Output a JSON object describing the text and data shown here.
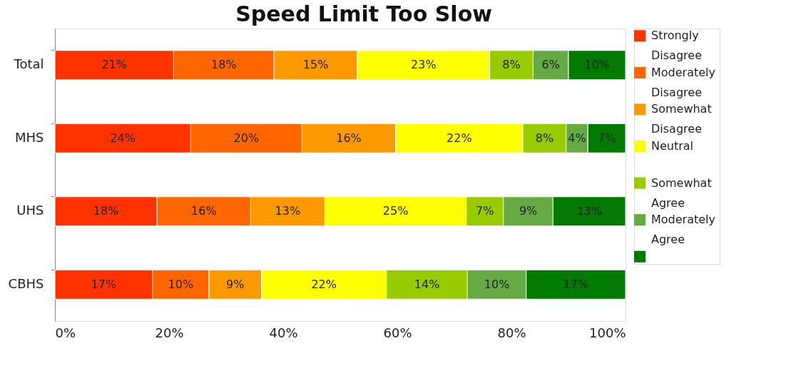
{
  "chart_data": {
    "type": "bar",
    "orientation": "horizontal",
    "stacked": true,
    "title": "Speed Limit Too Slow",
    "categories": [
      "Total",
      "MHS",
      "UHS",
      "CBHS"
    ],
    "series": [
      {
        "name": "Strongly Disagree",
        "color": "#ff3300",
        "values": [
          20.8,
          23.8,
          17.9,
          17.1
        ],
        "value_labels": [
          "21%",
          "24%",
          "18%",
          "17%"
        ]
      },
      {
        "name": "Moderately Disagree",
        "color": "#ff6600",
        "values": [
          17.6,
          19.5,
          16.4,
          9.9
        ],
        "value_labels": [
          "18%",
          "20%",
          "16%",
          "10%"
        ]
      },
      {
        "name": "Somewhat Disagree",
        "color": "#ff9900",
        "values": [
          14.6,
          16.4,
          13,
          9.2
        ],
        "value_labels": [
          "15%",
          "16%",
          "13%",
          "9%"
        ]
      },
      {
        "name": "Neutral",
        "color": "#ffff00",
        "values": [
          23.2,
          22.3,
          24.8,
          21.9
        ],
        "value_labels": [
          "23%",
          "22%",
          "25%",
          "22%"
        ]
      },
      {
        "name": "Somewhat Agree",
        "color": "#99cc00",
        "values": [
          7.6,
          7.6,
          6.5,
          14.2
        ],
        "value_labels": [
          "8%",
          "8%",
          "7%",
          "14%"
        ]
      },
      {
        "name": "Moderately Agree",
        "color": "#66aa44",
        "values": [
          6.2,
          3.8,
          8.7,
          10.3
        ],
        "value_labels": [
          "6%",
          "4%",
          "9%",
          "10%"
        ]
      },
      {
        "color": "#007a00",
        "values": [
          10,
          6.6,
          12.7,
          17.4
        ],
        "value_labels": [
          "10%",
          "7%",
          "13%",
          "17%"
        ]
      }
    ],
    "xlim": [
      0,
      100
    ],
    "xticks": [
      {
        "value": 0,
        "label": "0%"
      },
      {
        "value": 20,
        "label": "20%"
      },
      {
        "value": 40,
        "label": "40%"
      },
      {
        "value": 60,
        "label": "60%"
      },
      {
        "value": 80,
        "label": "80%"
      },
      {
        "value": 100,
        "label": "100%"
      }
    ],
    "grid": false,
    "legend": "right"
  }
}
